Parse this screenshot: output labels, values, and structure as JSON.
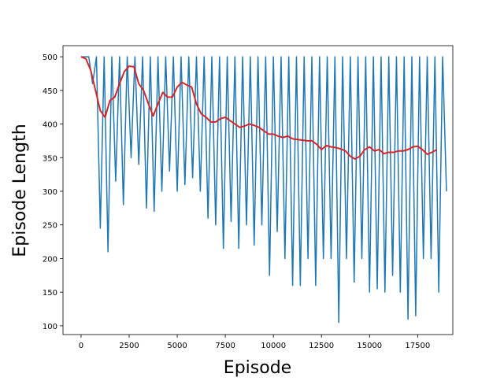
{
  "chart_data": {
    "type": "line",
    "xlabel": "Episode",
    "ylabel": "Episode Length",
    "xlim": [
      -940,
      19330
    ],
    "ylim": [
      87,
      516.5
    ],
    "xticks": [
      0,
      2500,
      5000,
      7500,
      10000,
      12500,
      15000,
      17500
    ],
    "yticks": [
      100,
      150,
      200,
      250,
      300,
      350,
      400,
      450,
      500
    ],
    "series": [
      {
        "color": "#1f77b4",
        "width": 1.5,
        "x": [
          0,
          200,
          400,
          600,
          800,
          1000,
          1200,
          1400,
          1600,
          1800,
          2000,
          2200,
          2400,
          2600,
          2800,
          3000,
          3200,
          3400,
          3600,
          3800,
          4000,
          4200,
          4400,
          4600,
          4800,
          5000,
          5200,
          5400,
          5600,
          5800,
          6000,
          6200,
          6400,
          6600,
          6800,
          7000,
          7200,
          7400,
          7600,
          7800,
          8000,
          8200,
          8400,
          8600,
          8800,
          9000,
          9200,
          9400,
          9600,
          9800,
          10000,
          10200,
          10400,
          10600,
          10800,
          11000,
          11200,
          11400,
          11600,
          11800,
          12000,
          12200,
          12400,
          12600,
          12800,
          13000,
          13200,
          13400,
          13600,
          13800,
          14000,
          14200,
          14400,
          14600,
          14800,
          15000,
          15200,
          15400,
          15600,
          15800,
          16000,
          16200,
          16400,
          16600,
          16800,
          17000,
          17200,
          17400,
          17600,
          17800,
          18000,
          18200,
          18400,
          18600,
          18800,
          19000
        ],
        "values": [
          500,
          500,
          500,
          460,
          500,
          245,
          500,
          210,
          500,
          315,
          500,
          280,
          500,
          350,
          500,
          340,
          500,
          275,
          500,
          270,
          500,
          300,
          500,
          330,
          500,
          300,
          500,
          310,
          500,
          320,
          500,
          300,
          500,
          260,
          500,
          250,
          500,
          215,
          500,
          255,
          500,
          215,
          500,
          250,
          500,
          220,
          500,
          250,
          500,
          175,
          500,
          240,
          500,
          200,
          500,
          160,
          500,
          160,
          500,
          200,
          500,
          160,
          500,
          200,
          500,
          200,
          500,
          105,
          500,
          200,
          500,
          165,
          500,
          200,
          500,
          150,
          500,
          155,
          500,
          150,
          500,
          175,
          500,
          150,
          500,
          110,
          500,
          115,
          500,
          200,
          500,
          200,
          500,
          150,
          500,
          300
        ]
      },
      {
        "color": "#d62728",
        "width": 2,
        "x": [
          0,
          250,
          500,
          750,
          1000,
          1250,
          1500,
          1750,
          2000,
          2250,
          2500,
          2750,
          3000,
          3250,
          3500,
          3750,
          4000,
          4250,
          4500,
          4750,
          5000,
          5250,
          5500,
          5750,
          6000,
          6250,
          6500,
          6750,
          7000,
          7250,
          7500,
          7750,
          8000,
          8250,
          8500,
          8750,
          9000,
          9250,
          9500,
          9750,
          10000,
          10250,
          10500,
          10750,
          11000,
          11250,
          11500,
          11750,
          12000,
          12250,
          12500,
          12750,
          13000,
          13250,
          13500,
          13750,
          14000,
          14250,
          14500,
          14750,
          15000,
          15250,
          15500,
          15750,
          16000,
          16250,
          16500,
          16750,
          17000,
          17250,
          17500,
          17750,
          18000,
          18250,
          18500
        ],
        "values": [
          500,
          497,
          480,
          450,
          420,
          410,
          435,
          440,
          460,
          478,
          486,
          485,
          460,
          450,
          430,
          412,
          430,
          447,
          440,
          440,
          455,
          462,
          458,
          455,
          430,
          415,
          410,
          403,
          403,
          408,
          410,
          405,
          400,
          395,
          397,
          400,
          398,
          395,
          390,
          385,
          385,
          382,
          380,
          382,
          378,
          377,
          376,
          375,
          375,
          370,
          362,
          368,
          366,
          365,
          363,
          360,
          352,
          348,
          352,
          362,
          366,
          360,
          362,
          356,
          358,
          358,
          360,
          360,
          362,
          366,
          367,
          362,
          355,
          358,
          362
        ]
      }
    ]
  }
}
